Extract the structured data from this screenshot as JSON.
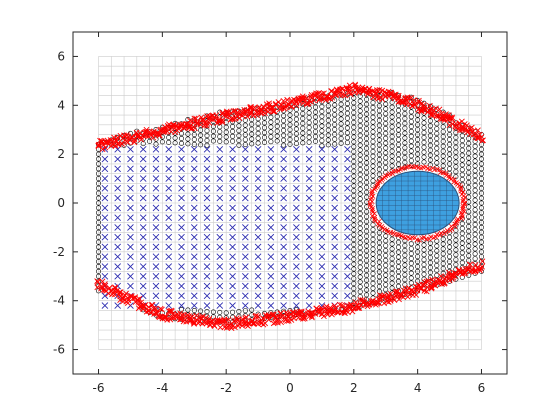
{
  "chart_data": {
    "type": "scatter",
    "title": "",
    "xlabel": "",
    "ylabel": "",
    "xlim": [
      -6.8,
      6.8
    ],
    "ylim": [
      -7,
      7
    ],
    "xticks": [
      -6,
      -4,
      -2,
      0,
      2,
      4,
      6
    ],
    "yticks": [
      -6,
      -4,
      -2,
      0,
      2,
      4,
      6
    ],
    "xtick_labels": [
      "-6",
      "-4",
      "-2",
      "0",
      "2",
      "4",
      "6"
    ],
    "ytick_labels": [
      "-6",
      "-4",
      "-2",
      "0",
      "2",
      "4",
      "6"
    ],
    "grid": {
      "step": 0.4,
      "range": [
        -6,
        6
      ],
      "color": "#cccccc"
    },
    "series": [
      {
        "kind": "mesh-grid",
        "color": "#cccccc",
        "description": "regular grid of cells, spacing 0.4, from -6 to 6"
      },
      {
        "kind": "interior-x-markers",
        "marker": "x",
        "color": "#2d2db0",
        "x_range": [
          -5.8,
          1.8
        ],
        "y_range": [
          -4.2,
          2.2
        ],
        "step": 0.4
      },
      {
        "kind": "region-o-markers",
        "marker": "o",
        "color": "#000000",
        "top_boundary": [
          [
            -6,
            2.6
          ],
          [
            -4,
            3.2
          ],
          [
            -2,
            3.8
          ],
          [
            0,
            4.2
          ],
          [
            2,
            4.7
          ],
          [
            3.5,
            4.5
          ],
          [
            4.5,
            4.0
          ],
          [
            5.8,
            3.0
          ],
          [
            6,
            2.9
          ]
        ],
        "bottom_boundary": [
          [
            -6,
            -3.6
          ],
          [
            -4,
            -4.7
          ],
          [
            -2,
            -4.9
          ],
          [
            0,
            -4.6
          ],
          [
            2,
            -4.3
          ],
          [
            4,
            -3.6
          ],
          [
            5.5,
            -3.0
          ],
          [
            6,
            -2.8
          ]
        ],
        "step": 0.2
      },
      {
        "kind": "red-boundary-markers",
        "marker": "x",
        "color": "#ff0000",
        "upper": [
          [
            -6,
            2.6
          ],
          [
            -4,
            3.2
          ],
          [
            -2,
            3.8
          ],
          [
            0,
            4.3
          ],
          [
            2,
            4.9
          ],
          [
            3.5,
            4.5
          ],
          [
            4.5,
            4.0
          ],
          [
            5.5,
            3.3
          ],
          [
            6,
            2.9
          ]
        ],
        "lower": [
          [
            -6,
            -3.6
          ],
          [
            -4,
            -4.8
          ],
          [
            -2,
            -5.2
          ],
          [
            0,
            -4.9
          ],
          [
            2,
            -4.5
          ],
          [
            4,
            -3.8
          ],
          [
            5.5,
            -3.0
          ],
          [
            6,
            -2.8
          ]
        ]
      },
      {
        "kind": "filled-circle",
        "center": [
          4.0,
          0.0
        ],
        "radius": 1.3,
        "fill": "#3ea0e0",
        "edge": "#2b4f7a",
        "ring_color": "#ff0000"
      }
    ]
  }
}
